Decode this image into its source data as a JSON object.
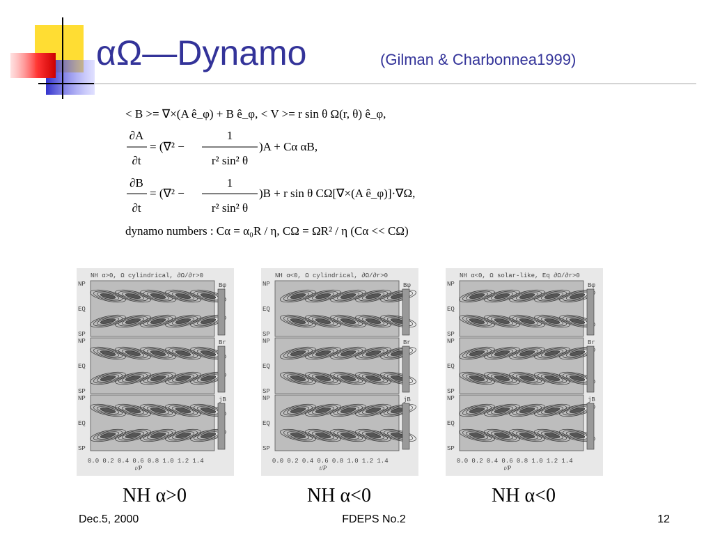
{
  "header": {
    "title": "αΩ—Dynamo",
    "citation": "(Gilman & Charbonnea1999)"
  },
  "equations": {
    "line1": "< B >= ∇×(A ê_φ) + B ê_φ,  < V >= r sin θ Ω(r, θ) ê_φ,",
    "eqA": {
      "lhs_num": "∂A",
      "lhs_den": "∂t",
      "mid": "= (∇² −",
      "frac_num": "1",
      "frac_den": "r² sin² θ",
      "rest": ")A + Cα αB,"
    },
    "eqB": {
      "lhs_num": "∂B",
      "lhs_den": "∂t",
      "mid": "= (∇² −",
      "frac_num": "1",
      "frac_den": "r² sin² θ",
      "rest": ")B + r sin θ CΩ[∇×(A ê_φ)]·∇Ω,"
    },
    "line4": "dynamo numbers : Cα = α₀R / η,  CΩ = ΩR² / η    (Cα << CΩ)"
  },
  "panels": [
    {
      "heading": "NH α>0, Ω cylindrical, ∂Ω/∂r>0",
      "strips": [
        {
          "field": "Bφ",
          "labels": [
            "NP",
            "EQ",
            "SP"
          ]
        },
        {
          "field": "Br",
          "labels": [
            "NP",
            "EQ",
            "SP"
          ]
        },
        {
          "field": "jB",
          "labels": [
            "NP",
            "EQ",
            "SP"
          ]
        }
      ],
      "x_ticks": [
        "0.0",
        "0.2",
        "0.4",
        "0.6",
        "0.8",
        "1.0",
        "1.2",
        "1.4"
      ],
      "x_label": "t/P",
      "caption": "NH α>0"
    },
    {
      "heading": "NH α<0, Ω cylindrical, ∂Ω/∂r>0",
      "strips": [
        {
          "field": "Bφ",
          "labels": [
            "NP",
            "EQ",
            "SP"
          ]
        },
        {
          "field": "Br",
          "labels": [
            "NP",
            "EQ",
            "SP"
          ]
        },
        {
          "field": "jB",
          "labels": [
            "NP",
            "EQ",
            "SP"
          ]
        }
      ],
      "x_ticks": [
        "0.0",
        "0.2",
        "0.4",
        "0.6",
        "0.8",
        "1.0",
        "1.2",
        "1.4"
      ],
      "x_label": "t/P",
      "caption": "NH α<0"
    },
    {
      "heading": "NH α<0, Ω solar-like, Eq ∂Ω/∂r>0",
      "strips": [
        {
          "field": "Bφ",
          "labels": [
            "NP",
            "EQ",
            "SP"
          ]
        },
        {
          "field": "Br",
          "labels": [
            "NP",
            "EQ",
            "SP"
          ]
        },
        {
          "field": "jB",
          "labels": [
            "NP",
            "EQ",
            "SP"
          ]
        }
      ],
      "x_ticks": [
        "0.0",
        "0.2",
        "0.4",
        "0.6",
        "0.8",
        "1.0",
        "1.2",
        "1.4"
      ],
      "x_label": "t/P",
      "caption": "NH α<0"
    }
  ],
  "footer": {
    "date": "Dec.5, 2000",
    "event": "FDEPS No.2",
    "page": "12"
  }
}
